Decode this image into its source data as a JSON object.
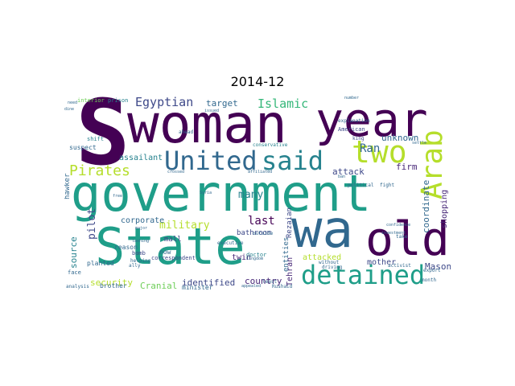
{
  "title": "2014-12",
  "colors": {
    "purple_dark": "#440154",
    "purple": "#482878",
    "indigo": "#3e4989",
    "blue": "#31688e",
    "teal_blue": "#26828e",
    "teal": "#1f9e89",
    "green": "#35b779",
    "light_green": "#6ece58",
    "yellow_green": "#b5de2b"
  },
  "words": {
    "s": "S",
    "woman": "woman",
    "year": "year",
    "arab": "Arab",
    "united": "United",
    "said": "said",
    "two": "two",
    "government": "government",
    "state": "State",
    "wa": "wa",
    "old": "old",
    "detained": "detained",
    "pirates": "Pirates",
    "egyptian": "Egyptian",
    "islamic": "Islamic",
    "ran": "Ran",
    "military": "military",
    "pilot": "pilot",
    "last": "last",
    "many": "many",
    "target": "target",
    "unknown": "unknown",
    "attack": "attack",
    "firm": "firm",
    "coordinate": "coordinate",
    "mason": "Mason",
    "mother": "mother",
    "shopping": "shopping",
    "source": "source",
    "security": "security",
    "cranial": "Cranial",
    "identified": "identified",
    "country": "country",
    "twin": "twin",
    "tehran": "Tehran",
    "attacked": "attacked",
    "bathroom": "bathroom",
    "corporate": "corporate",
    "assailant": "assailant",
    "hawker": "hawker",
    "rezaian": "Rezaian",
    "entities": "entities",
    "mall": "mall",
    "now": "now",
    "planted": "planted",
    "reason": "reason",
    "brother": "brother",
    "minister": "minister",
    "face": "face",
    "correspondent": "correspondent",
    "interior": "interior",
    "prison": "prison",
    "suspect": "suspect",
    "shift": "shift",
    "american": "American",
    "king": "king",
    "doctor": "doctor",
    "outside": "outside",
    "without": "without",
    "executive": "executive",
    "political": "political",
    "bomb": "bomb",
    "helping": "helping",
    "conservative": "conservative",
    "ally": "ally",
    "analysis": "analysis",
    "month": "month",
    "export": "export",
    "activist": "activist",
    "fight": "fight",
    "take": "take",
    "least": "least",
    "rushaid": "Rushaid",
    "driving": "driving",
    "explanation": "explanation",
    "number": "number",
    "dine": "dine",
    "ahead": "ahead",
    "kingdom": "kingdom",
    "appealed": "appealed",
    "confidence": "confidence",
    "ban": "ban",
    "settle": "settle",
    "investment": "investment",
    "need": "need",
    "syria": "Syria",
    "crossed": "crossed",
    "issued": "issued",
    "affiliated": "affiliated",
    "free": "free",
    "major": "major",
    "lashing": "lashing"
  }
}
